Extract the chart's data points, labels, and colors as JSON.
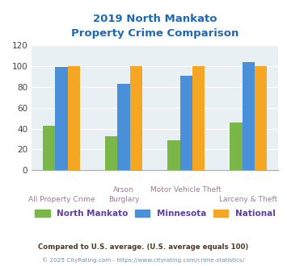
{
  "title_line1": "2019 North Mankato",
  "title_line2": "Property Crime Comparison",
  "x_labels_row1": [
    "",
    "Arson",
    "Motor Vehicle Theft",
    ""
  ],
  "x_labels_row2": [
    "All Property Crime",
    "Burglary",
    "",
    "Larceny & Theft"
  ],
  "north_mankato": [
    43,
    33,
    29,
    46
  ],
  "minnesota": [
    99,
    83,
    91,
    104
  ],
  "national": [
    100,
    100,
    100,
    100
  ],
  "bar_colors": {
    "north_mankato": "#7ab648",
    "minnesota": "#4a90d9",
    "national": "#f5a623"
  },
  "ylim": [
    0,
    120
  ],
  "yticks": [
    0,
    20,
    40,
    60,
    80,
    100,
    120
  ],
  "legend_labels": [
    "North Mankato",
    "Minnesota",
    "National"
  ],
  "footer_text1": "Compared to U.S. average. (U.S. average equals 100)",
  "footer_text2": "© 2025 CityRating.com - https://www.cityrating.com/crime-statistics/",
  "bg_color": "#e8f0f4",
  "title_color": "#2068b0",
  "xlabel_color": "#a07898",
  "legend_text_color": "#6040a0",
  "footer1_color": "#4a3a2a",
  "footer2_color": "#7090a8"
}
